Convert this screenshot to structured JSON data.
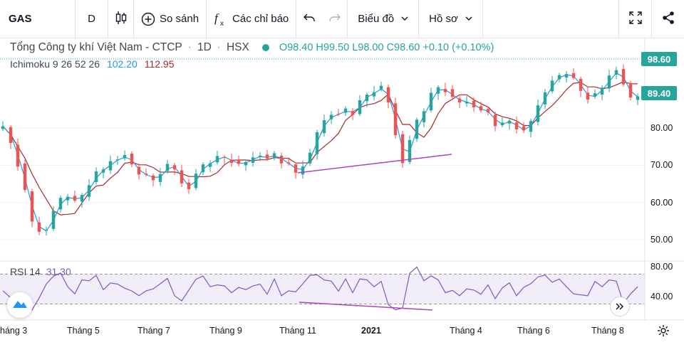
{
  "toolbar": {
    "symbol": "GAS",
    "interval": "D",
    "compare_label": "So sánh",
    "indicators_label": "Các chỉ báo",
    "chart_type_label": "Biểu đồ",
    "profile_label": "Hồ sơ"
  },
  "legend": {
    "name": "Tổng Công ty khí Việt Nam - CTCP",
    "interval": "1D",
    "exchange": "HSX",
    "ohlc": "O98.40  H99.50  L98.00  C98.60  +0.10 (+0.10%)"
  },
  "ichimoku": {
    "label": "Ichimoku 9 26 52 26",
    "value1": "102.20",
    "value2": "112.95"
  },
  "rsi": {
    "label": "RSI 14",
    "value": "31.30"
  },
  "price_tags": {
    "last": "98.60",
    "ichimoku": "89.40"
  },
  "price_axis": [
    "80.00",
    "70.00",
    "60.00",
    "50.00"
  ],
  "rsi_axis": [
    "80.00",
    "40.00"
  ],
  "time_axis": [
    "háng 3",
    "Tháng 5",
    "Tháng 7",
    "Tháng 9",
    "Tháng 11",
    "2021",
    "Tháng 4",
    "Tháng 6",
    "Tháng 8"
  ],
  "colors": {
    "up": "#26a69a",
    "down": "#ef5350",
    "conversion": "#2196f3",
    "base": "#a52a2a",
    "rsi": "#7e57c2",
    "trendline": "#ab47bc"
  },
  "icons": {
    "candles": "candlestick-icon",
    "compare": "plus-circle-icon",
    "indicators": "fx-icon",
    "undo": "undo-icon",
    "redo": "redo-icon",
    "fullscreen": "fullscreen-icon",
    "share": "share-icon",
    "settings": "gear-icon",
    "scroll": "scroll-to-realtime-icon",
    "logo": "tradingview-logo-icon"
  }
}
